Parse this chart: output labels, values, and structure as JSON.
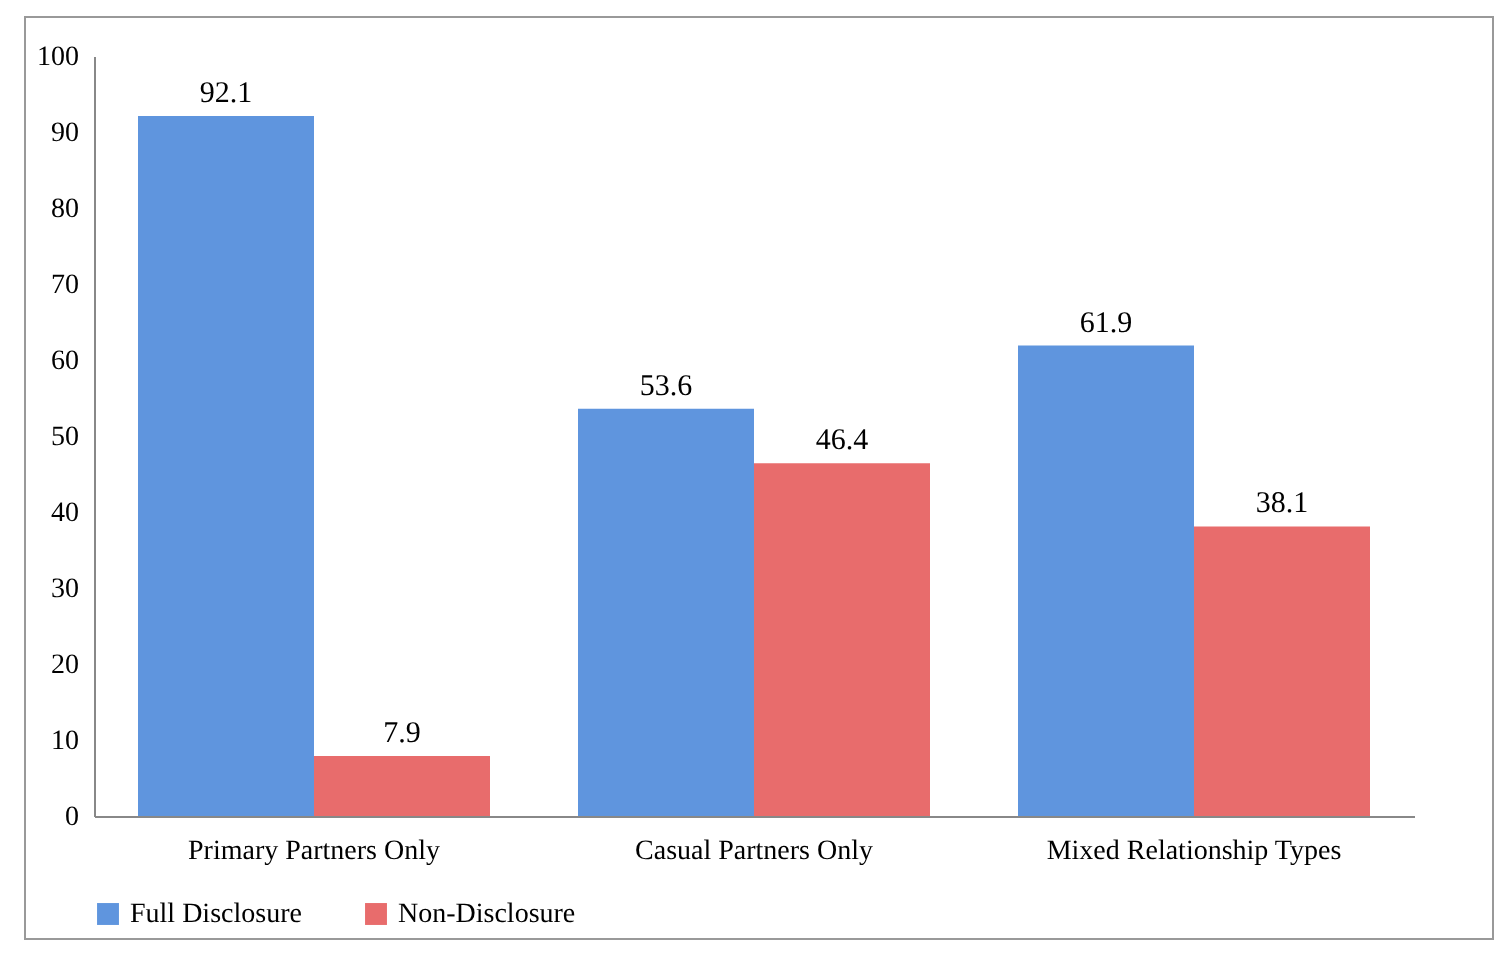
{
  "chart_data": {
    "type": "bar",
    "categories": [
      "Primary Partners Only",
      "Casual Partners Only",
      "Mixed Relationship Types"
    ],
    "series": [
      {
        "name": "Full Disclosure",
        "color": "#5f95de",
        "values": [
          92.1,
          53.6,
          61.9
        ]
      },
      {
        "name": "Non-Disclosure",
        "color": "#e86c6c",
        "values": [
          7.9,
          46.4,
          38.1
        ]
      }
    ],
    "ylim": [
      0,
      100
    ],
    "yticks": [
      0,
      10,
      20,
      30,
      40,
      50,
      60,
      70,
      80,
      90,
      100
    ],
    "data_labels": true,
    "legend": "bottom",
    "grid": false
  }
}
